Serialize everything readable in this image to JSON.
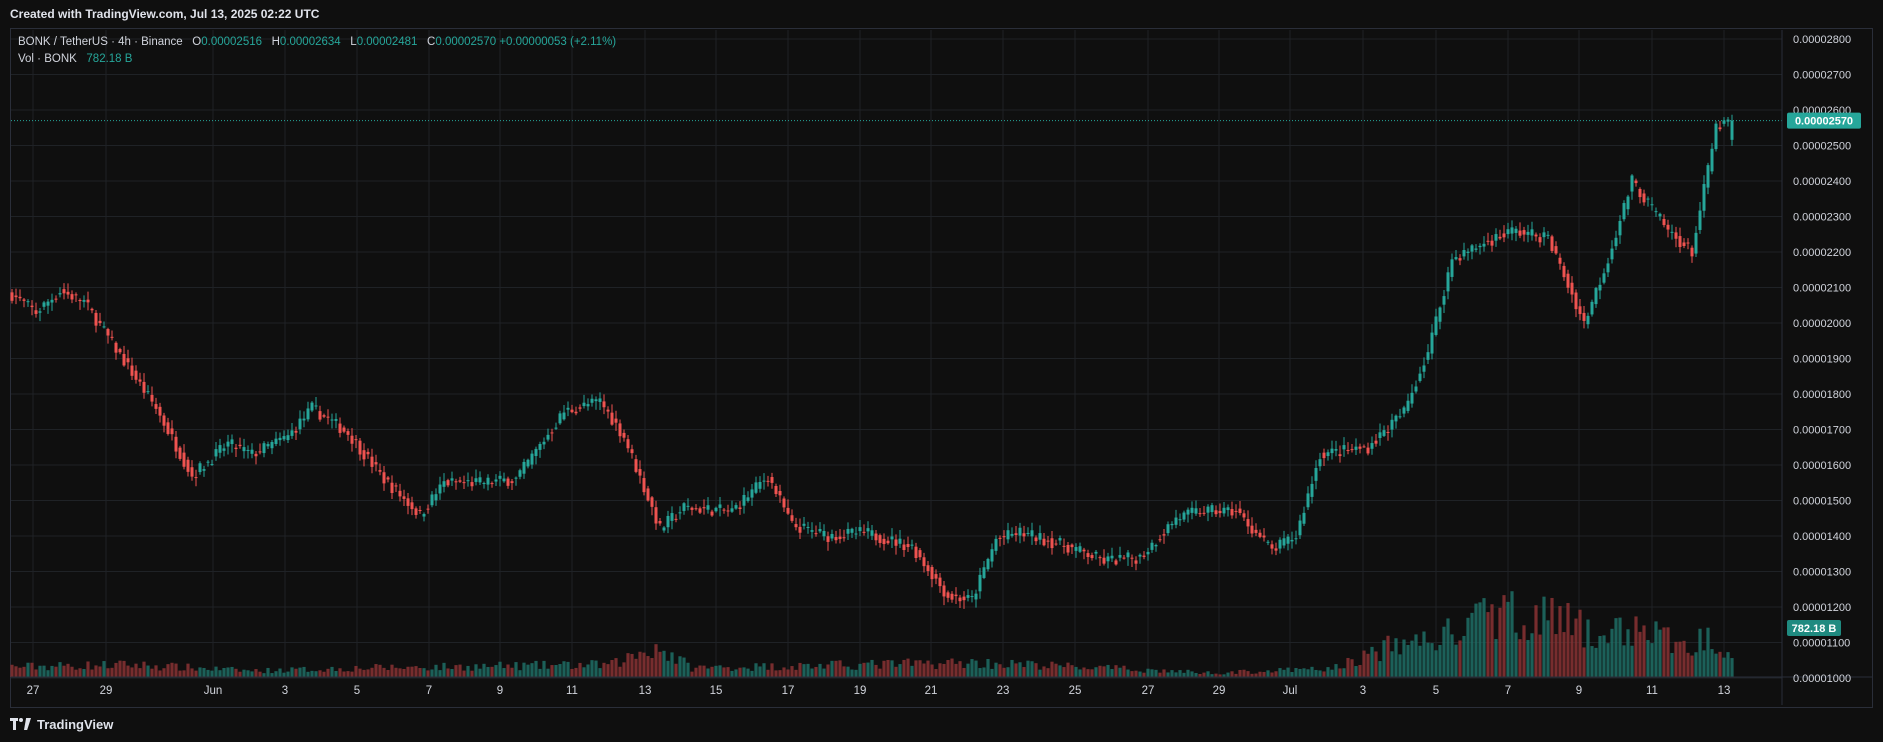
{
  "header": {
    "created_text": "Created with TradingView.com, Jul 13, 2025 02:22 UTC"
  },
  "legend": {
    "symbol": "BONK / TetherUS · 4h · Binance",
    "o_label": "O",
    "o_value": "0.00002516",
    "h_label": "H",
    "h_value": "0.00002634",
    "l_label": "L",
    "l_value": "0.00002481",
    "c_label": "C",
    "c_value": "0.00002570",
    "change": "+0.00000053 (+2.11%)",
    "vol_label": "Vol · BONK",
    "vol_value": "782.18 B"
  },
  "footer": {
    "brand": "TradingView"
  },
  "colors": {
    "up": "#26a69a",
    "down": "#ef5350",
    "background": "#0f0f0f",
    "grid": "#1f2226",
    "text": "#d1d4dc"
  },
  "chart_data": {
    "type": "candlestick",
    "interval": "4h",
    "price_axis": {
      "ticks": [
        "0.00002800",
        "0.00002700",
        "0.00002600",
        "0.00002500",
        "0.00002400",
        "0.00002300",
        "0.00002200",
        "0.00002100",
        "0.00002000",
        "0.00001900",
        "0.00001800",
        "0.00001700",
        "0.00001600",
        "0.00001500",
        "0.00001400",
        "0.00001300",
        "0.00001200",
        "0.00001100",
        "0.00001000"
      ],
      "range": [
        1e-05,
        2.8e-05
      ]
    },
    "time_axis": {
      "ticks": [
        "27",
        "29",
        "Jun",
        "3",
        "5",
        "7",
        "9",
        "11",
        "13",
        "15",
        "17",
        "19",
        "21",
        "23",
        "25",
        "27",
        "29",
        "Jul",
        "3",
        "5",
        "7",
        "9",
        "11",
        "13"
      ]
    },
    "last_price_label": "0.00002570",
    "last_price": 2.57e-05,
    "volume_label": "782.18 B",
    "price_path": [
      [
        0,
        20.8
      ],
      [
        6,
        20.3
      ],
      [
        12,
        20.9
      ],
      [
        18,
        20.6
      ],
      [
        24,
        19.6
      ],
      [
        36,
        17.6
      ],
      [
        45,
        15.7
      ],
      [
        54,
        16.6
      ],
      [
        60,
        16.3
      ],
      [
        69,
        16.8
      ],
      [
        75,
        17.6
      ],
      [
        84,
        16.9
      ],
      [
        93,
        15.6
      ],
      [
        102,
        14.6
      ],
      [
        108,
        15.5
      ],
      [
        117,
        15.5
      ],
      [
        126,
        15.6
      ],
      [
        138,
        17.5
      ],
      [
        147,
        17.8
      ],
      [
        153,
        16.8
      ],
      [
        162,
        14.2
      ],
      [
        168,
        14.8
      ],
      [
        180,
        14.7
      ],
      [
        189,
        15.7
      ],
      [
        195,
        14.3
      ],
      [
        204,
        14.0
      ],
      [
        213,
        14.1
      ],
      [
        225,
        13.7
      ],
      [
        234,
        12.3
      ],
      [
        240,
        12.2
      ],
      [
        246,
        13.9
      ],
      [
        252,
        14.1
      ],
      [
        264,
        13.7
      ],
      [
        273,
        13.3
      ],
      [
        282,
        13.4
      ],
      [
        291,
        14.5
      ],
      [
        297,
        14.7
      ],
      [
        306,
        14.7
      ],
      [
        315,
        13.6
      ],
      [
        321,
        14.0
      ],
      [
        327,
        16.3
      ],
      [
        339,
        16.5
      ],
      [
        348,
        17.5
      ],
      [
        354,
        19.2
      ],
      [
        360,
        21.8
      ],
      [
        369,
        22.3
      ],
      [
        375,
        22.6
      ],
      [
        384,
        22.4
      ],
      [
        393,
        20.0
      ],
      [
        399,
        21.8
      ],
      [
        405,
        24.0
      ],
      [
        414,
        22.6
      ],
      [
        420,
        22.0
      ],
      [
        426,
        25.5
      ],
      [
        430,
        25.7
      ]
    ],
    "volume_profile": [
      [
        0,
        1.0
      ],
      [
        30,
        1.2
      ],
      [
        60,
        0.6
      ],
      [
        90,
        0.9
      ],
      [
        150,
        1.2
      ],
      [
        161,
        3.0
      ],
      [
        170,
        0.9
      ],
      [
        200,
        1.1
      ],
      [
        240,
        1.4
      ],
      [
        260,
        1.1
      ],
      [
        300,
        0.4
      ],
      [
        330,
        0.8
      ],
      [
        345,
        3.0
      ],
      [
        360,
        4.2
      ],
      [
        372,
        6.3
      ],
      [
        385,
        5.8
      ],
      [
        396,
        4.0
      ],
      [
        408,
        4.8
      ],
      [
        418,
        2.8
      ],
      [
        425,
        4.0
      ],
      [
        430,
        2.6
      ]
    ]
  }
}
